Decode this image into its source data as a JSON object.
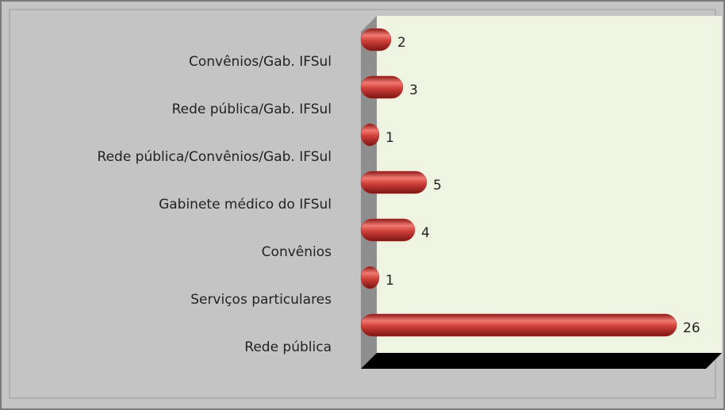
{
  "chart_data": {
    "type": "bar",
    "orientation": "horizontal",
    "categories": [
      "Convênios/Gab. IFSul",
      "Rede pública/Gab. IFSul",
      "Rede pública/Convênios/Gab. IFSul",
      "Gabinete médico do IFSul",
      "Convênios",
      "Serviços particulares",
      "Rede pública"
    ],
    "values": [
      2,
      3,
      1,
      5,
      4,
      1,
      26
    ],
    "color": "#c0302c"
  }
}
